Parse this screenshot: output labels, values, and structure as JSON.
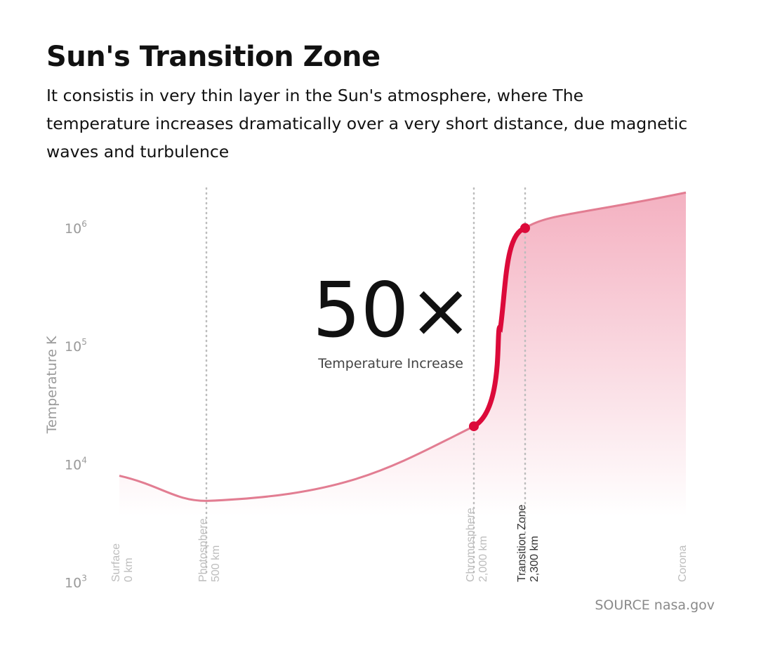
{
  "header": {
    "title": "Sun's Transition Zone",
    "subtitle": "It consistis in very thin layer in the Sun's atmosphere, where The temperature increases dramatically over a very short distance, due magnetic waves and turbulence"
  },
  "source": "SOURCE nasa.gov",
  "colors": {
    "accent": "#dc0a3a",
    "curve": "#e27d92",
    "area": "#f2a3b6",
    "guide": "#bdbdbd"
  },
  "chart_data": {
    "type": "area",
    "y_scale": "log",
    "ylabel": "Temperature K",
    "y_ticks": [
      {
        "base": "10",
        "exp": "3",
        "value": 1000
      },
      {
        "base": "10",
        "exp": "4",
        "value": 10000
      },
      {
        "base": "10",
        "exp": "5",
        "value": 100000
      },
      {
        "base": "10",
        "exp": "6",
        "value": 1000000
      }
    ],
    "ylim": [
      1000,
      2000000
    ],
    "x_order": [
      "Surface",
      "Photosphere",
      "Chromosphere",
      "Transition Zone",
      "Corona"
    ],
    "layers": [
      {
        "name": "Surface",
        "distance": "0 km",
        "highlight": false
      },
      {
        "name": "Photosphere",
        "distance": "500 km",
        "highlight": false
      },
      {
        "name": "Chromosphere",
        "distance": "2,000 km",
        "highlight": false
      },
      {
        "name": "Transition Zone",
        "distance": "2,300 km",
        "highlight": true
      },
      {
        "name": "Corona",
        "distance": "",
        "highlight": false
      }
    ],
    "temperature_profile": [
      {
        "at": "Surface",
        "temperature": 8000
      },
      {
        "at": "Photosphere",
        "temperature": 4900
      },
      {
        "at": "Chromosphere",
        "temperature": 21000
      },
      {
        "at": "Transition Zone",
        "temperature": 1000000
      },
      {
        "at": "Corona",
        "temperature": 2000000
      }
    ],
    "highlight_segment": {
      "from": "Chromosphere",
      "to": "Transition Zone"
    },
    "annotation": {
      "value": "50×",
      "label": "Temperature Increase"
    },
    "grid": false
  }
}
